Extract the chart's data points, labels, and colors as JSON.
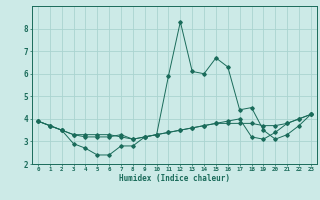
{
  "title": "",
  "xlabel": "Humidex (Indice chaleur)",
  "background_color": "#cceae7",
  "grid_color": "#aad4d0",
  "line_color": "#1a6b5a",
  "x_values": [
    0,
    1,
    2,
    3,
    4,
    5,
    6,
    7,
    8,
    9,
    10,
    11,
    12,
    13,
    14,
    15,
    16,
    17,
    18,
    19,
    20,
    21,
    22,
    23
  ],
  "line1": [
    3.9,
    3.7,
    3.5,
    3.3,
    3.3,
    3.3,
    3.3,
    3.2,
    3.1,
    3.2,
    3.3,
    3.4,
    3.5,
    3.6,
    3.7,
    3.8,
    3.8,
    3.8,
    3.8,
    3.7,
    3.7,
    3.8,
    4.0,
    4.2
  ],
  "line2": [
    3.9,
    3.7,
    3.5,
    2.9,
    2.7,
    2.4,
    2.4,
    2.8,
    2.8,
    3.2,
    3.3,
    3.4,
    3.5,
    3.6,
    3.7,
    3.8,
    3.9,
    4.0,
    3.2,
    3.1,
    3.4,
    3.8,
    4.0,
    4.2
  ],
  "line3": [
    3.9,
    3.7,
    3.5,
    3.3,
    3.2,
    3.2,
    3.2,
    3.3,
    3.1,
    3.2,
    3.3,
    5.9,
    8.3,
    6.1,
    6.0,
    6.7,
    6.3,
    4.4,
    4.5,
    3.5,
    3.1,
    3.3,
    3.7,
    4.2
  ],
  "ylim": [
    2,
    9
  ],
  "xlim": [
    -0.5,
    23.5
  ],
  "yticks": [
    2,
    3,
    4,
    5,
    6,
    7,
    8
  ],
  "xticks": [
    0,
    1,
    2,
    3,
    4,
    5,
    6,
    7,
    8,
    9,
    10,
    11,
    12,
    13,
    14,
    15,
    16,
    17,
    18,
    19,
    20,
    21,
    22,
    23
  ],
  "xtick_labels": [
    "0",
    "1",
    "2",
    "3",
    "4",
    "5",
    "6",
    "7",
    "8",
    "9",
    "10",
    "11",
    "12",
    "13",
    "14",
    "15",
    "16",
    "17",
    "18",
    "19",
    "20",
    "21",
    "22",
    "23"
  ]
}
